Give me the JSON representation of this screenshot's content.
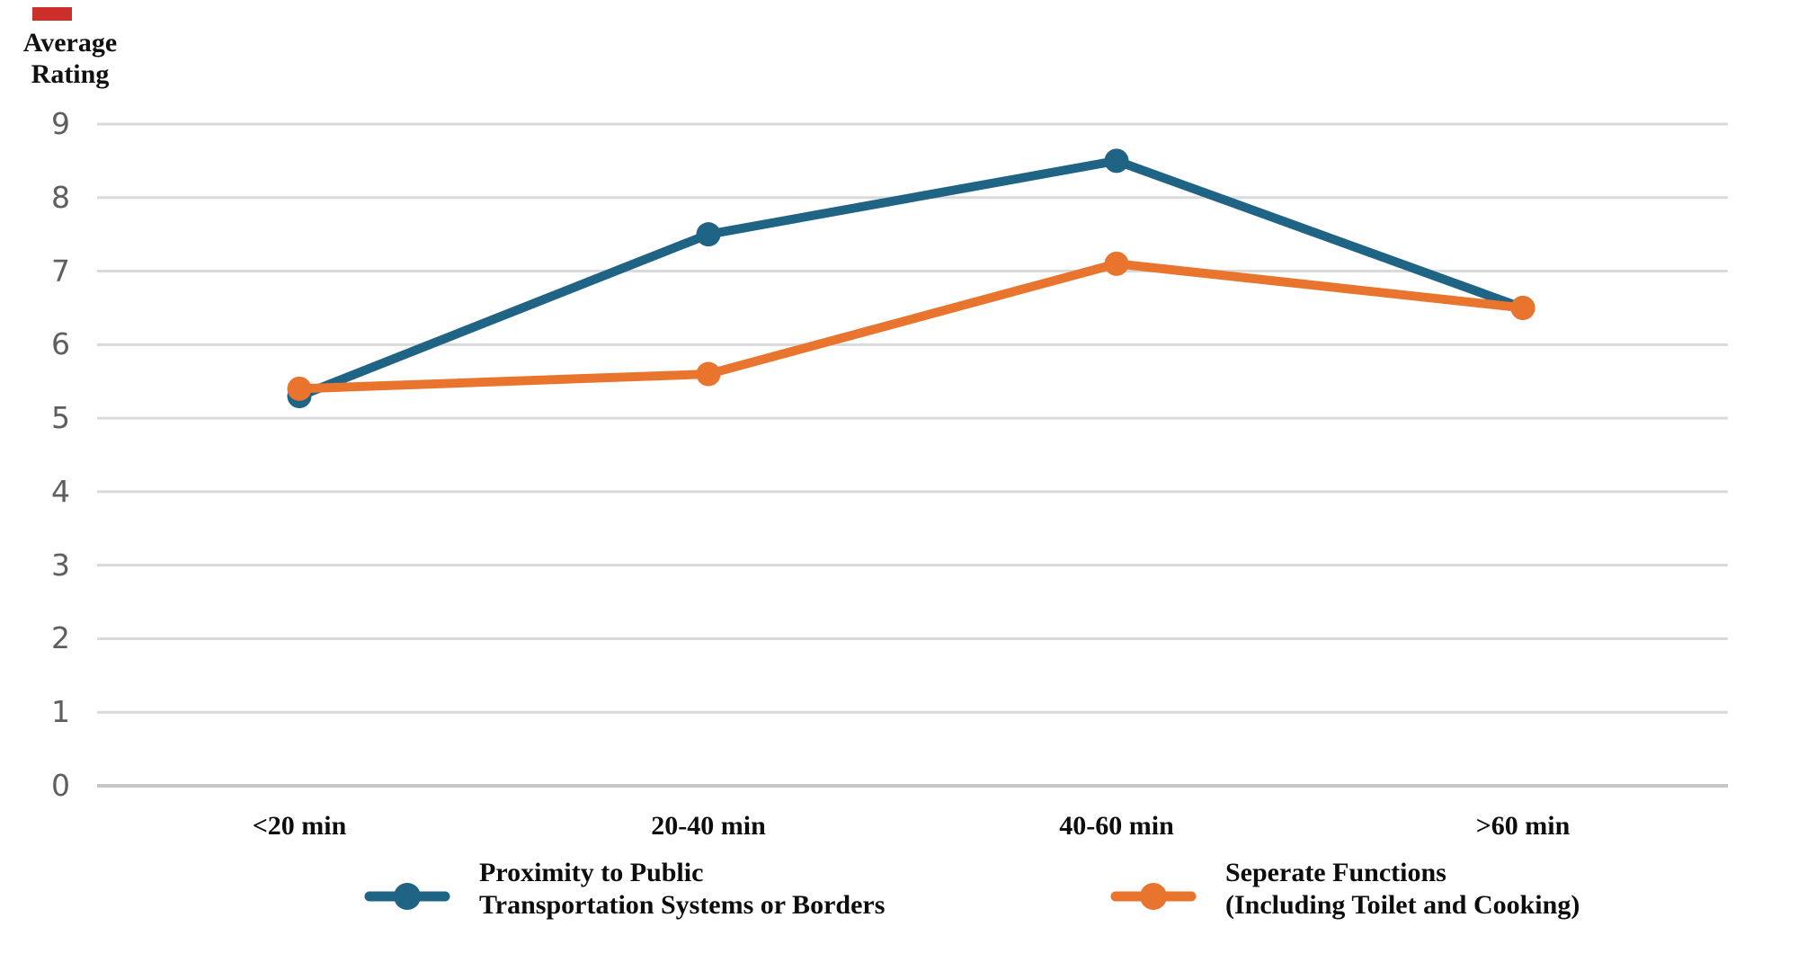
{
  "decorations": {
    "red_mark_color": "#cc2f2a"
  },
  "chart_data": {
    "type": "line",
    "title": "",
    "y_axis_title": "Average\nRating",
    "xlabel": "",
    "ylabel": "Average Rating",
    "categories": [
      "<20 min",
      "20-40 min",
      "40-60 min",
      ">60 min"
    ],
    "series": [
      {
        "name": "Proximity to Public\nTransportation Systems or Borders",
        "color": "#1f6385",
        "values": [
          5.3,
          7.5,
          8.5,
          6.5
        ]
      },
      {
        "name": "Seperate Functions\n(Including Toilet and Cooking)",
        "color": "#e8742d",
        "values": [
          5.4,
          5.6,
          7.1,
          6.5
        ]
      }
    ],
    "ylim": [
      0,
      9
    ],
    "yticks": [
      0,
      1,
      2,
      3,
      4,
      5,
      6,
      7,
      8,
      9
    ],
    "grid": "horizontal",
    "gridline_color": "#dadada",
    "baseline_color": "#c6c6c6",
    "tick_label_color": "#5e5e5e",
    "legend_position": "bottom"
  }
}
